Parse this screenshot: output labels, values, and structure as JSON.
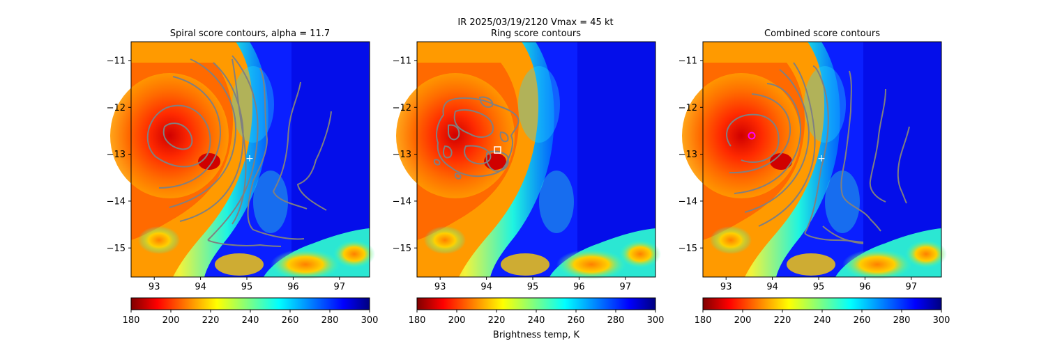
{
  "figure": {
    "suptitle_line1": "IR  2025/03/19/2120    Vmax = 45 kt",
    "colorbar_label": "Brightness temp, K"
  },
  "chart_data": [
    {
      "type": "heatmap",
      "title": "Spiral score contours, alpha = 11.7",
      "xlim": [
        92.5,
        97.65
      ],
      "ylim": [
        -15.62,
        -10.6
      ],
      "xticks": [
        93,
        94,
        95,
        96,
        97
      ],
      "yticks": [
        -11,
        -12,
        -13,
        -14,
        -15
      ],
      "contour_color": "#808080",
      "marker": {
        "symbol": "+",
        "x": 95.05,
        "y": -13.12,
        "color": "#ffffff"
      },
      "colorbar": {
        "cmap": "jet_r",
        "range": [
          180,
          300
        ],
        "ticks": [
          180,
          200,
          220,
          240,
          260,
          280,
          300
        ]
      }
    },
    {
      "type": "heatmap",
      "title": "Ring score contours",
      "xlim": [
        92.5,
        97.65
      ],
      "ylim": [
        -15.62,
        -10.6
      ],
      "xticks": [
        93,
        94,
        95,
        96,
        97
      ],
      "yticks": [
        -11,
        -12,
        -13,
        -14,
        -15
      ],
      "contour_color": "#808080",
      "marker": {
        "symbol": "square",
        "x": 94.2,
        "y": -12.92,
        "color": "#ffffff"
      },
      "colorbar": {
        "cmap": "jet_r",
        "range": [
          180,
          300
        ],
        "ticks": [
          180,
          200,
          220,
          240,
          260,
          280,
          300
        ]
      }
    },
    {
      "type": "heatmap",
      "title": "Combined score contours",
      "xlim": [
        92.5,
        97.65
      ],
      "ylim": [
        -15.62,
        -10.6
      ],
      "xticks": [
        93,
        94,
        95,
        96,
        97
      ],
      "yticks": [
        -11,
        -12,
        -13,
        -14,
        -15
      ],
      "contour_color": "#808080",
      "markers": [
        {
          "symbol": "+",
          "x": 95.05,
          "y": -13.12,
          "color": "#ffffff"
        },
        {
          "symbol": "circle",
          "x": 93.53,
          "y": -12.62,
          "color": "#ff00ff"
        }
      ],
      "colorbar": {
        "cmap": "jet_r",
        "range": [
          180,
          300
        ],
        "ticks": [
          180,
          200,
          220,
          240,
          260,
          280,
          300
        ]
      }
    }
  ]
}
